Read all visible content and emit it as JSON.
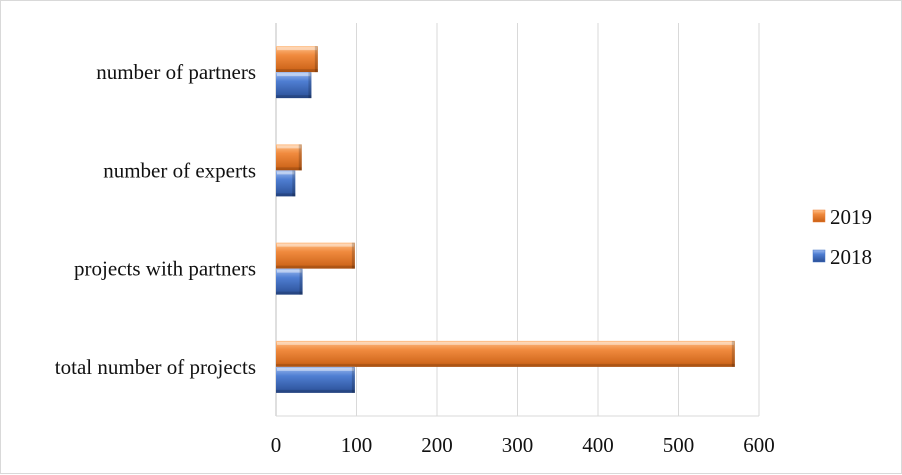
{
  "chart_data": {
    "type": "bar",
    "orientation": "horizontal",
    "title": "",
    "xlabel": "",
    "ylabel": "",
    "categories": [
      "number of partners",
      "number of experts",
      "projects with partners",
      "total number of projects"
    ],
    "series": [
      {
        "name": "2019",
        "color": "#ed7d31",
        "values": [
          52,
          32,
          98,
          570
        ]
      },
      {
        "name": "2018",
        "color": "#4472c4",
        "values": [
          44,
          24,
          33,
          98
        ]
      }
    ],
    "xlim": [
      0,
      600
    ],
    "xticks": [
      "0",
      "100",
      "200",
      "300",
      "400",
      "500",
      "600"
    ],
    "grid": "vertical",
    "legend": "right",
    "style": "3d-bevel"
  }
}
